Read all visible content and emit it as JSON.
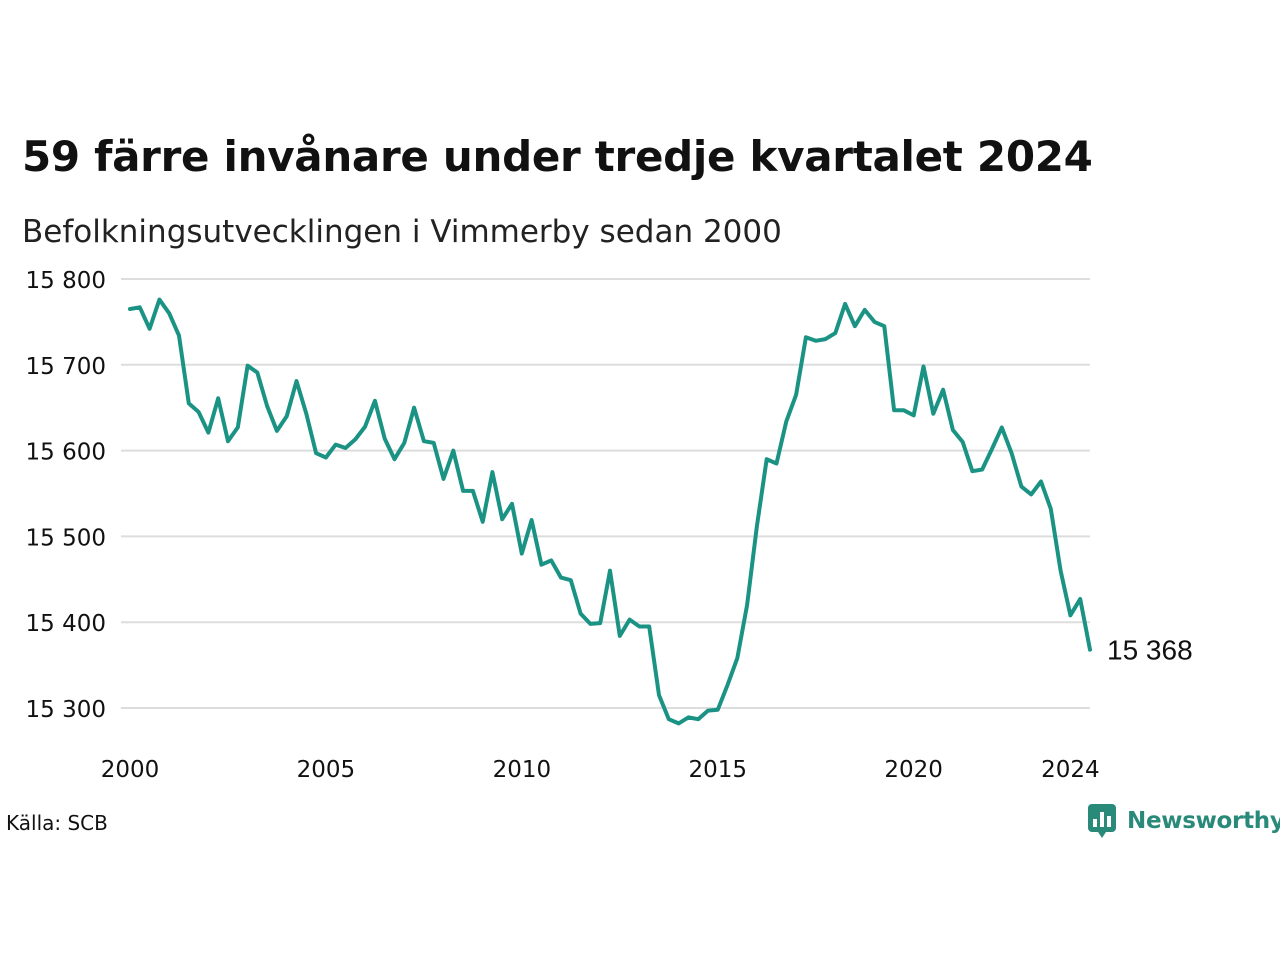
{
  "title": "59 färre invånare under tredje kvartalet 2024",
  "subtitle": "Befolkningsutvecklingen i Vimmerby sedan 2000",
  "source": "Källa: SCB",
  "brand": {
    "name": "Newsworthy",
    "icon": "newsworthy-logo-icon"
  },
  "colors": {
    "line": "#1b9384",
    "grid": "#dddddd",
    "text": "#111111",
    "brand": "#2a8a7a"
  },
  "chart_data": {
    "type": "line",
    "title": "59 färre invånare under tredje kvartalet 2024",
    "subtitle": "Befolkningsutvecklingen i Vimmerby sedan 2000",
    "xlabel": "",
    "ylabel": "",
    "xlim": [
      2000,
      2024.5
    ],
    "ylim": [
      15260,
      15800
    ],
    "x_ticks": [
      2000,
      2005,
      2010,
      2015,
      2020,
      2024
    ],
    "x_tick_labels": [
      "2000",
      "2005",
      "2010",
      "2015",
      "2020",
      "2024"
    ],
    "y_ticks": [
      15300,
      15400,
      15500,
      15600,
      15700,
      15800
    ],
    "y_tick_labels": [
      "15 300",
      "15 400",
      "15 500",
      "15 600",
      "15 700",
      "15 800"
    ],
    "grid": true,
    "legend": "none",
    "end_label": "15 368",
    "series": [
      {
        "start_year": 2000,
        "frequency": "quarterly",
        "values": [
          15765,
          15767,
          15742,
          15776,
          15760,
          15734,
          15655,
          15645,
          15621,
          15661,
          15611,
          15627,
          15699,
          15691,
          15652,
          15623,
          15640,
          15681,
          15643,
          15597,
          15592,
          15607,
          15603,
          15613,
          15628,
          15658,
          15614,
          15590,
          15609,
          15650,
          15611,
          15609,
          15567,
          15600,
          15553,
          15553,
          15517,
          15575,
          15520,
          15538,
          15480,
          15519,
          15467,
          15472,
          15452,
          15449,
          15410,
          15398,
          15399,
          15460,
          15384,
          15403,
          15395,
          15395,
          15315,
          15287,
          15282,
          15289,
          15287,
          15297,
          15298,
          15327,
          15358,
          15420,
          15512,
          15590,
          15585,
          15634,
          15665,
          15732,
          15728,
          15730,
          15737,
          15771,
          15745,
          15764,
          15750,
          15745,
          15647,
          15647,
          15641,
          15698,
          15643,
          15671,
          15624,
          15610,
          15576,
          15578,
          15602,
          15627,
          15597,
          15558,
          15549,
          15564,
          15532,
          15460,
          15408,
          15427,
          15368
        ]
      }
    ]
  }
}
